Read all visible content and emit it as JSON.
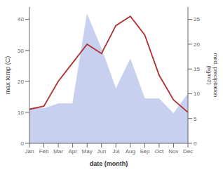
{
  "chart_data": {
    "type": "line",
    "xlabel": "date (month)",
    "ylabel": "max temp (C)",
    "y2label": "med. precipitation\n(kg/m2)",
    "categories": [
      "Jan",
      "Feb",
      "Mar",
      "Apr",
      "May",
      "Jun",
      "Jul",
      "Aug",
      "Sep",
      "Oct",
      "Nov",
      "Dec"
    ],
    "series": [
      {
        "type": "area",
        "axis": "y2",
        "color": "#c8d0f0",
        "values": [
          7,
          7,
          8,
          8,
          26,
          19,
          11,
          17,
          9,
          9,
          6,
          10
        ]
      },
      {
        "type": "line",
        "color": "#b03030",
        "values": [
          11,
          12,
          20,
          26,
          32,
          29,
          38,
          41,
          35,
          22,
          14,
          10
        ]
      }
    ],
    "ylim": [
      0,
      44
    ],
    "yticks": [
      0,
      10,
      20,
      30,
      40
    ],
    "y2lim": [
      0,
      27.5
    ],
    "y2ticks": [
      0,
      5,
      10,
      15,
      20,
      25
    ],
    "grid": false
  }
}
